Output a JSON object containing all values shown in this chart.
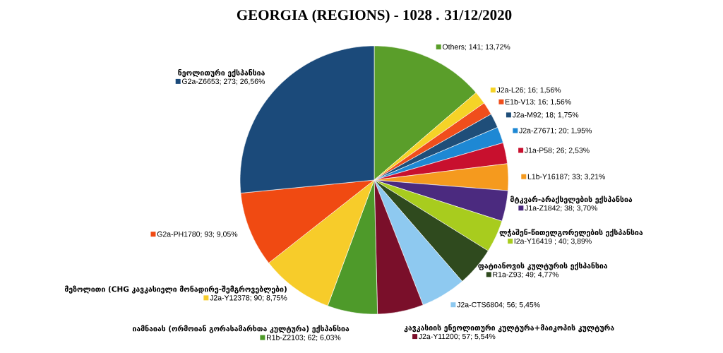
{
  "chart_data": {
    "type": "pie",
    "title": "GEORGIA (REGIONS) - 1028 . 31/12/2020",
    "categories": [
      "Others; 141; 13,72%",
      "J2a-L26; 16; 1,56%",
      "E1b-V13; 16; 1,56%",
      "J2a-M92; 18; 1,75%",
      "J2a-Z7671; 20; 1,95%",
      "J1a-P58; 26; 2,53%",
      "L1b-Y16187; 33; 3,21%",
      "J1a-Z1842; 38; 3,70%",
      "I2a-Y16419 ; 40; 3,89%",
      "R1a-Z93; 49; 4,77%",
      "J2a-CTS6804; 56; 5,45%",
      "J2a-Y11200; 57; 5,54%",
      "R1b-Z2103; 62; 6,03%",
      "J2a-Y12378; 90; 8,75%",
      "G2a-PH1780; 93; 9,05%",
      "G2a-Z6653; 273; 26,56%"
    ],
    "legend": "right",
    "values": [
      141,
      16,
      16,
      18,
      20,
      26,
      33,
      38,
      40,
      49,
      56,
      57,
      62,
      90,
      93,
      273
    ],
    "colors": [
      "#5a9e2a",
      "#f5d327",
      "#f04e1c",
      "#1f4e79",
      "#1e88d4",
      "#c8102e",
      "#f59a1e",
      "#4b2a7f",
      "#a8cc1e",
      "#2f4a1e",
      "#8ec9f0",
      "#7a0f2a",
      "#4e9a2a",
      "#f7cc2a",
      "#f04a12",
      "#1b4a7a"
    ],
    "annotations": [
      "მტკვარ-არაქსელების ექსპანსია",
      "ლჭაშენ-წითელგორელების ექსპანსია",
      "ფატიანოვის კულტურის ექსპანსია",
      "კავკასიის ენეოლითური კულტურა+მაიკოპის კულტურა",
      "იამნაიას (ორმოიან გორასამარხთა კულტურა) ექსპანსია",
      "მეზოლითი (CHG კავკასიელი მონადირე-შემგროვებლები)",
      "ნეოლითური ექსპანსია"
    ]
  }
}
